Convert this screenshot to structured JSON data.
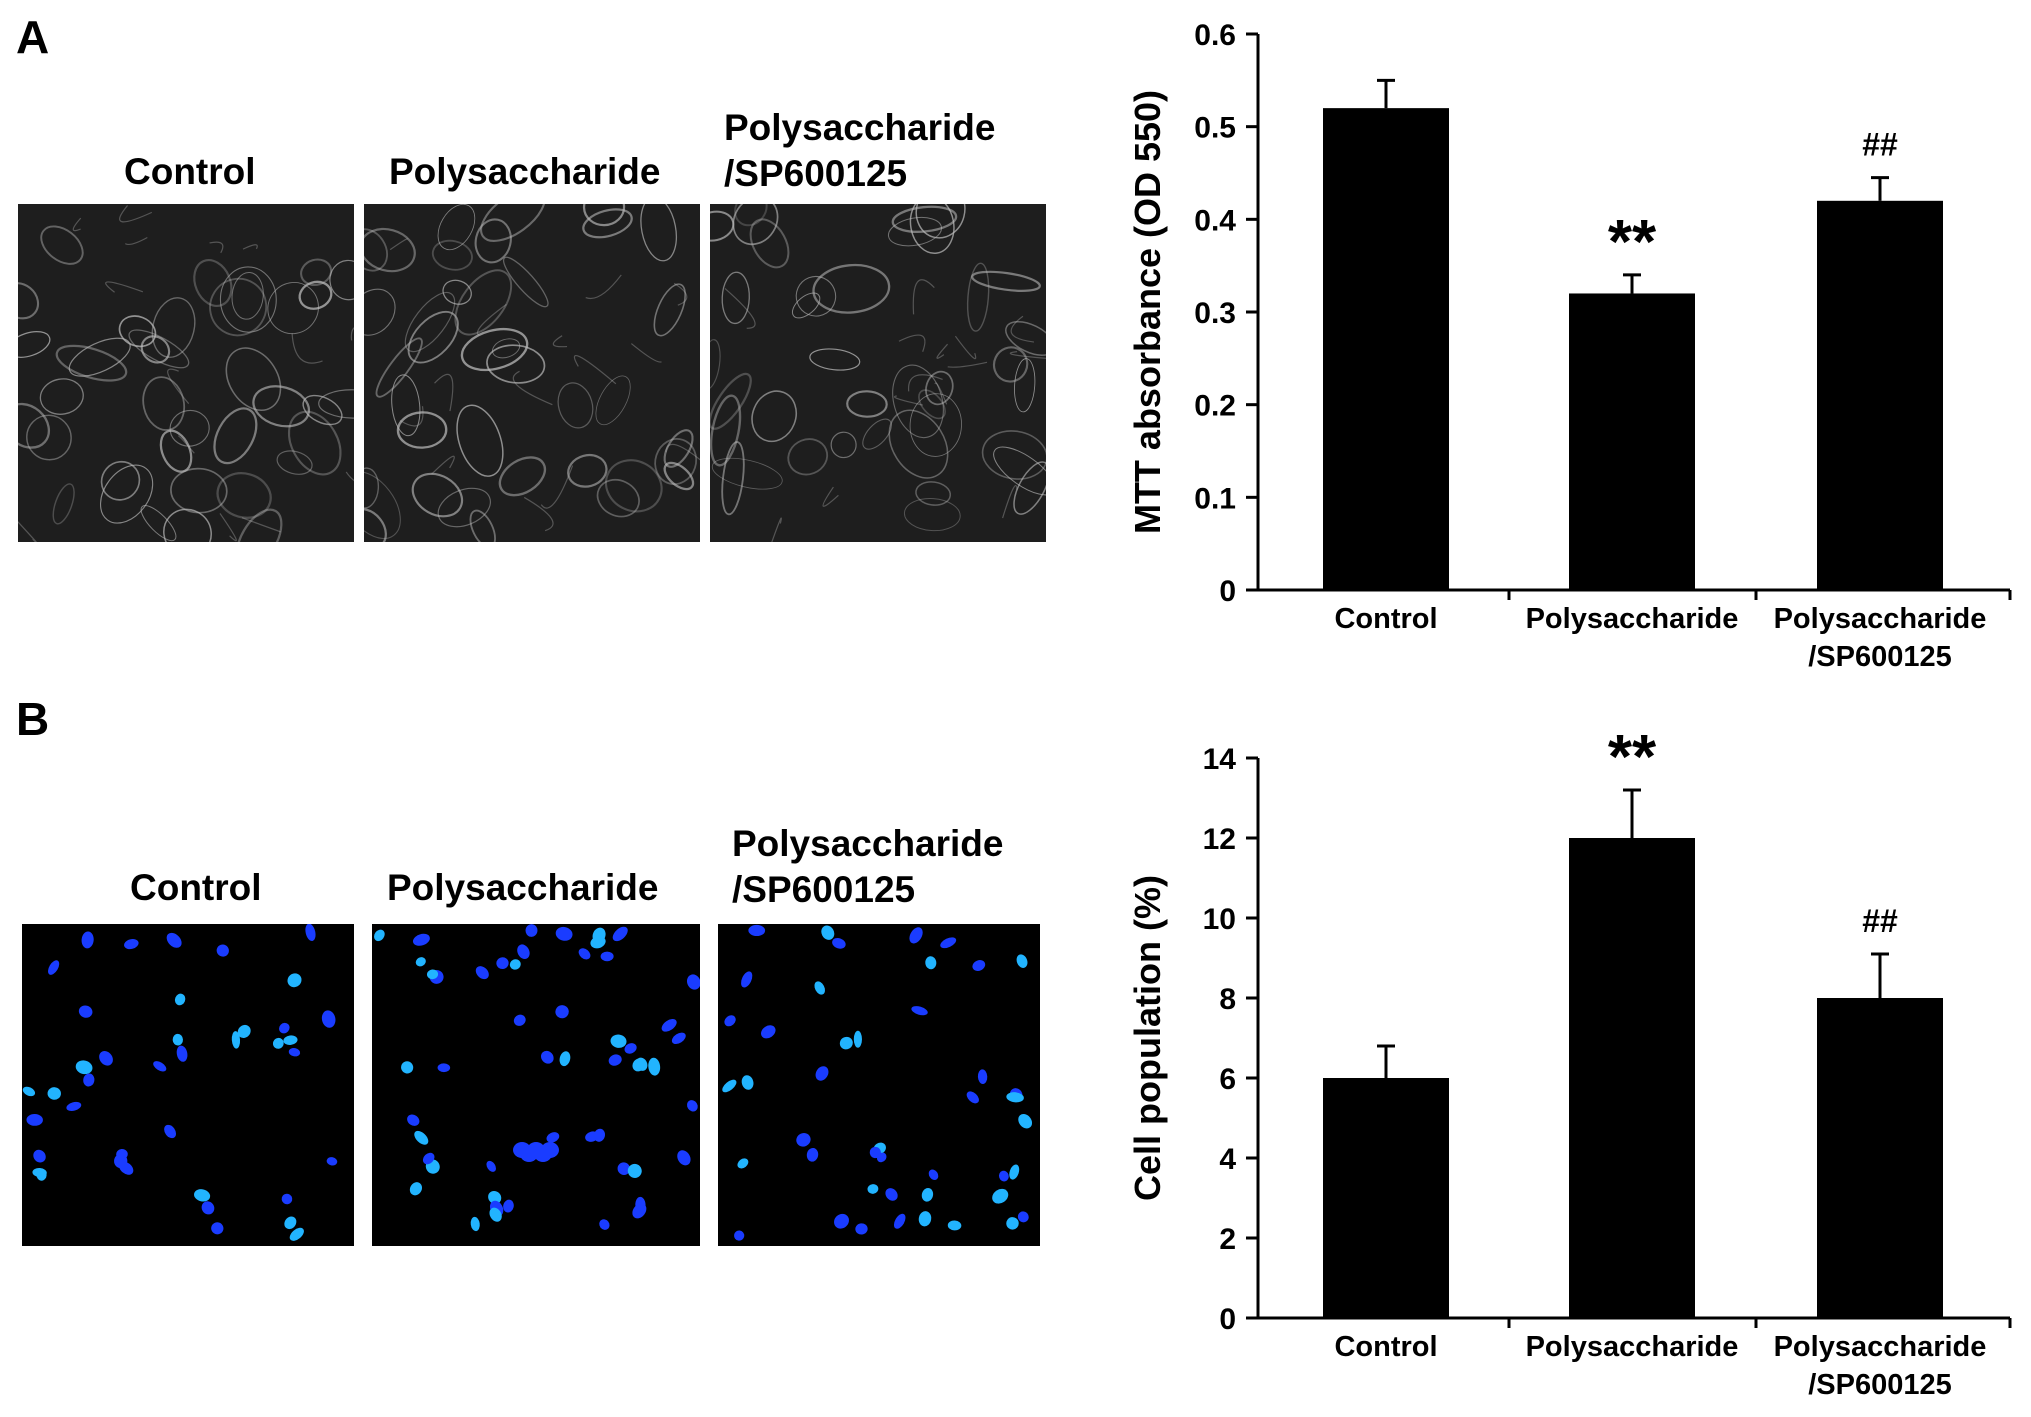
{
  "panels": [
    {
      "letter": "A",
      "micrograph_labels": [
        "Control",
        "Polysaccharide",
        "Polysaccharide",
        "/SP600125"
      ],
      "micrograph_style": "phase-contrast grayscale",
      "colors": {
        "micro_bg": "#1e1e1e",
        "cell": "#bdbdbd"
      }
    },
    {
      "letter": "B",
      "micrograph_labels": [
        "Control",
        "Polysaccharide",
        "Polysaccharide",
        "/SP600125"
      ],
      "micrograph_style": "fluorescent nuclei",
      "colors": {
        "micro_bg": "#000000",
        "nucleus": "#1a3cff",
        "nucleus_bright": "#22b4ff"
      }
    }
  ],
  "chart_data": [
    {
      "type": "bar",
      "categories": [
        "Control",
        "Polysaccharide",
        "Polysaccharide\n/SP600125"
      ],
      "category_lines": [
        [
          "Control"
        ],
        [
          "Polysaccharide"
        ],
        [
          "Polysaccharide",
          "/SP600125"
        ]
      ],
      "values": [
        0.52,
        0.32,
        0.42
      ],
      "errors": [
        0.03,
        0.02,
        0.025
      ],
      "annotations": [
        "",
        "**",
        "##"
      ],
      "ylabel": "MTT absorbance (OD 550)",
      "xlabel": "",
      "ylim": [
        0,
        0.6
      ],
      "yticks": [
        "0",
        "0.1",
        "0.2",
        "0.3",
        "0.4",
        "0.5",
        "0.6"
      ],
      "bar_color": "#000000",
      "grid": false
    },
    {
      "type": "bar",
      "categories": [
        "Control",
        "Polysaccharide",
        "Polysaccharide\n/SP600125"
      ],
      "category_lines": [
        [
          "Control"
        ],
        [
          "Polysaccharide"
        ],
        [
          "Polysaccharide",
          "/SP600125"
        ]
      ],
      "values": [
        6.0,
        12.0,
        8.0
      ],
      "errors": [
        0.8,
        1.2,
        1.1
      ],
      "annotations": [
        "",
        "**",
        "##"
      ],
      "ylabel": "Cell population (%)",
      "xlabel": "",
      "ylim": [
        0,
        14
      ],
      "yticks": [
        "0",
        "2",
        "4",
        "6",
        "8",
        "10",
        "12",
        "14"
      ],
      "bar_color": "#000000",
      "grid": false
    }
  ]
}
